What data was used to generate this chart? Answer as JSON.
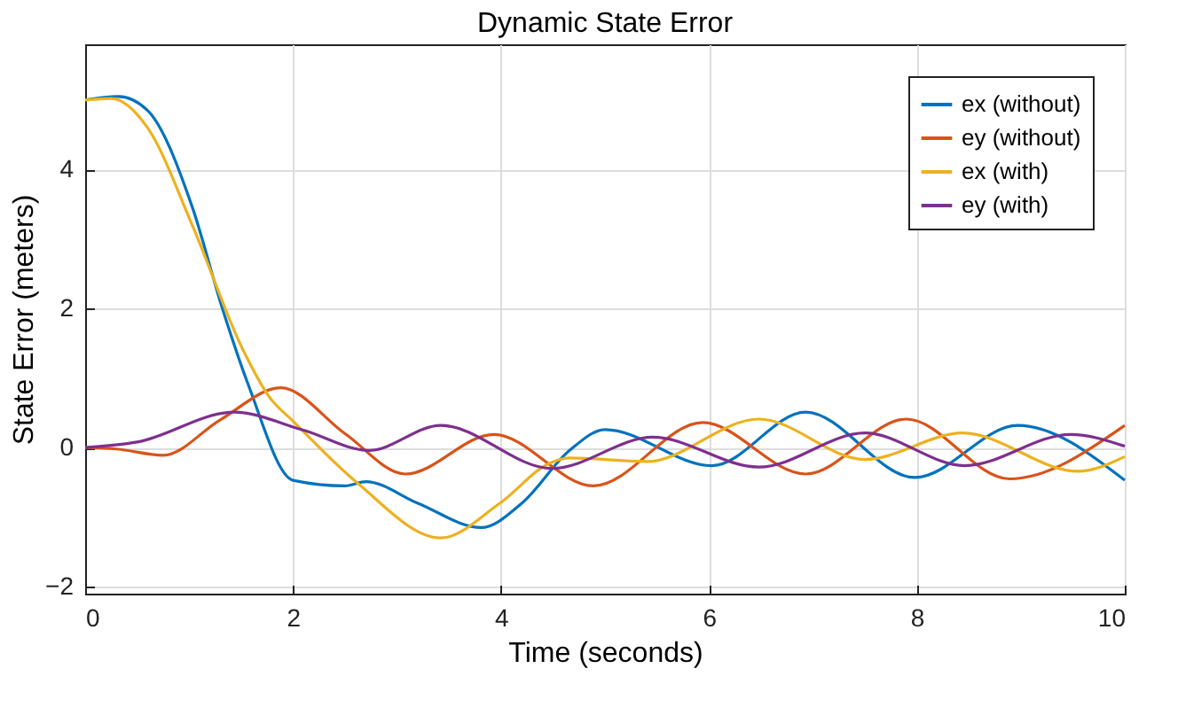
{
  "chart_data": {
    "type": "line",
    "title": "Dynamic State Error",
    "xlabel": "Time (seconds)",
    "ylabel": "State Error (meters)",
    "xlim": [
      0,
      10
    ],
    "ylim": [
      -2.1,
      5.8
    ],
    "xticks": [
      0,
      2,
      4,
      6,
      8,
      10
    ],
    "yticks": [
      -2,
      0,
      2,
      4
    ],
    "grid": true,
    "legend": "top right",
    "line_style": "solid",
    "marker": "none",
    "series": [
      {
        "name": "ex (without)",
        "color": "#0072bd",
        "x": [
          0,
          0.32,
          0.6,
          1.03,
          1.32,
          1.57,
          2.0,
          2.5,
          2.7,
          3.2,
          3.81,
          4.2,
          4.66,
          5.0,
          6.03,
          6.93,
          7.98,
          8.97,
          10
        ],
        "values": [
          5.0,
          5.05,
          4.85,
          3.46,
          2.0,
          0.9,
          -0.47,
          -0.55,
          -0.49,
          -0.8,
          -1.15,
          -0.8,
          -0.04,
          0.26,
          -0.26,
          0.51,
          -0.43,
          0.32,
          -0.47
        ]
      },
      {
        "name": "ey (without)",
        "color": "#d95319",
        "x": [
          0,
          0.3,
          0.75,
          1.3,
          1.88,
          2.5,
          3.08,
          3.93,
          4.89,
          5.94,
          6.93,
          7.9,
          8.89,
          10
        ],
        "values": [
          0,
          -0.02,
          -0.11,
          0.4,
          0.86,
          0.2,
          -0.38,
          0.19,
          -0.55,
          0.36,
          -0.38,
          0.41,
          -0.45,
          0.32
        ]
      },
      {
        "name": "ex (with)",
        "color": "#edb120",
        "x": [
          0,
          0.25,
          0.6,
          1.03,
          1.52,
          1.77,
          2.0,
          2.62,
          3.42,
          3.98,
          4.49,
          4.66,
          5.4,
          6.48,
          7.5,
          8.44,
          9.55,
          10
        ],
        "values": [
          5.0,
          5.02,
          4.6,
          3.2,
          1.4,
          0.73,
          0.38,
          -0.51,
          -1.3,
          -0.81,
          -0.21,
          -0.15,
          -0.2,
          0.41,
          -0.17,
          0.21,
          -0.34,
          -0.13
        ]
      },
      {
        "name": "ey (with)",
        "color": "#7e2f8e",
        "x": [
          0,
          0.5,
          1.43,
          2.1,
          2.73,
          3.42,
          4.49,
          5.46,
          6.48,
          7.5,
          8.46,
          9.48,
          10
        ],
        "values": [
          0,
          0.08,
          0.51,
          0.25,
          -0.04,
          0.32,
          -0.3,
          0.15,
          -0.28,
          0.21,
          -0.26,
          0.19,
          0.02
        ]
      }
    ]
  }
}
